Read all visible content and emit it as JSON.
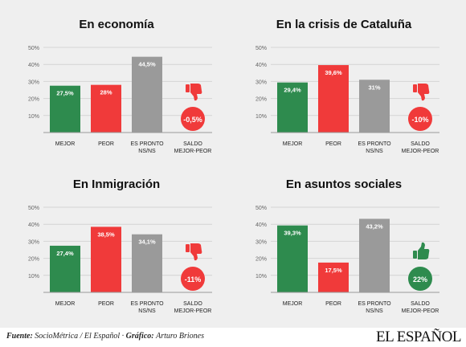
{
  "chart_data": [
    {
      "type": "bar",
      "title": "En economía",
      "categories": [
        "MEJOR",
        "PEOR",
        "ES PRONTO NS/NS"
      ],
      "values": [
        27.5,
        28,
        44.5
      ],
      "labels": [
        "27,5%",
        "28%",
        "44,5%"
      ],
      "colors": [
        "#2e8b4e",
        "#f03a3a",
        "#9a9a9a"
      ],
      "ylim": [
        0,
        50
      ],
      "yticks": [
        "10%",
        "20%",
        "30%",
        "40%",
        "50%"
      ],
      "balance": {
        "label": "SALDO MEJOR-PEOR",
        "value": -0.5,
        "text": "-0,5%",
        "color": "#f03a3a",
        "icon": "thumbs-down-icon"
      }
    },
    {
      "type": "bar",
      "title": "En la crisis de Cataluña",
      "categories": [
        "MEJOR",
        "PEOR",
        "ES PRONTO NS/NS"
      ],
      "values": [
        29.4,
        39.6,
        31
      ],
      "labels": [
        "29,4%",
        "39,6%",
        "31%"
      ],
      "colors": [
        "#2e8b4e",
        "#f03a3a",
        "#9a9a9a"
      ],
      "ylim": [
        0,
        50
      ],
      "yticks": [
        "10%",
        "20%",
        "30%",
        "40%",
        "50%"
      ],
      "balance": {
        "label": "SALDO MEJOR-PEOR",
        "value": -10,
        "text": "-10%",
        "color": "#f03a3a",
        "icon": "thumbs-down-icon"
      }
    },
    {
      "type": "bar",
      "title": "En Inmigración",
      "categories": [
        "MEJOR",
        "PEOR",
        "ES PRONTO NS/NS"
      ],
      "values": [
        27.4,
        38.5,
        34.1
      ],
      "labels": [
        "27,4%",
        "38,5%",
        "34,1%"
      ],
      "colors": [
        "#2e8b4e",
        "#f03a3a",
        "#9a9a9a"
      ],
      "ylim": [
        0,
        50
      ],
      "yticks": [
        "10%",
        "20%",
        "30%",
        "40%",
        "50%"
      ],
      "balance": {
        "label": "SALDO MEJOR-PEOR",
        "value": -11,
        "text": "-11%",
        "color": "#f03a3a",
        "icon": "thumbs-down-icon"
      }
    },
    {
      "type": "bar",
      "title": "En asuntos sociales",
      "categories": [
        "MEJOR",
        "PEOR",
        "ES PRONTO NS/NS"
      ],
      "values": [
        39.3,
        17.5,
        43.2
      ],
      "labels": [
        "39,3%",
        "17,5%",
        "43,2%"
      ],
      "colors": [
        "#2e8b4e",
        "#f03a3a",
        "#9a9a9a"
      ],
      "ylim": [
        0,
        50
      ],
      "yticks": [
        "10%",
        "20%",
        "30%",
        "40%",
        "50%"
      ],
      "balance": {
        "label": "SALDO MEJOR-PEOR",
        "value": 22,
        "text": "22%",
        "color": "#2e8b4e",
        "icon": "thumbs-up-icon"
      }
    }
  ],
  "footer": {
    "source_label": "Fuente:",
    "source_text": "SocioMétrica / El Español ·",
    "graphic_label": "Gráfico:",
    "graphic_text": "Arturo Briones",
    "logo": "EL ESPAÑOL"
  }
}
